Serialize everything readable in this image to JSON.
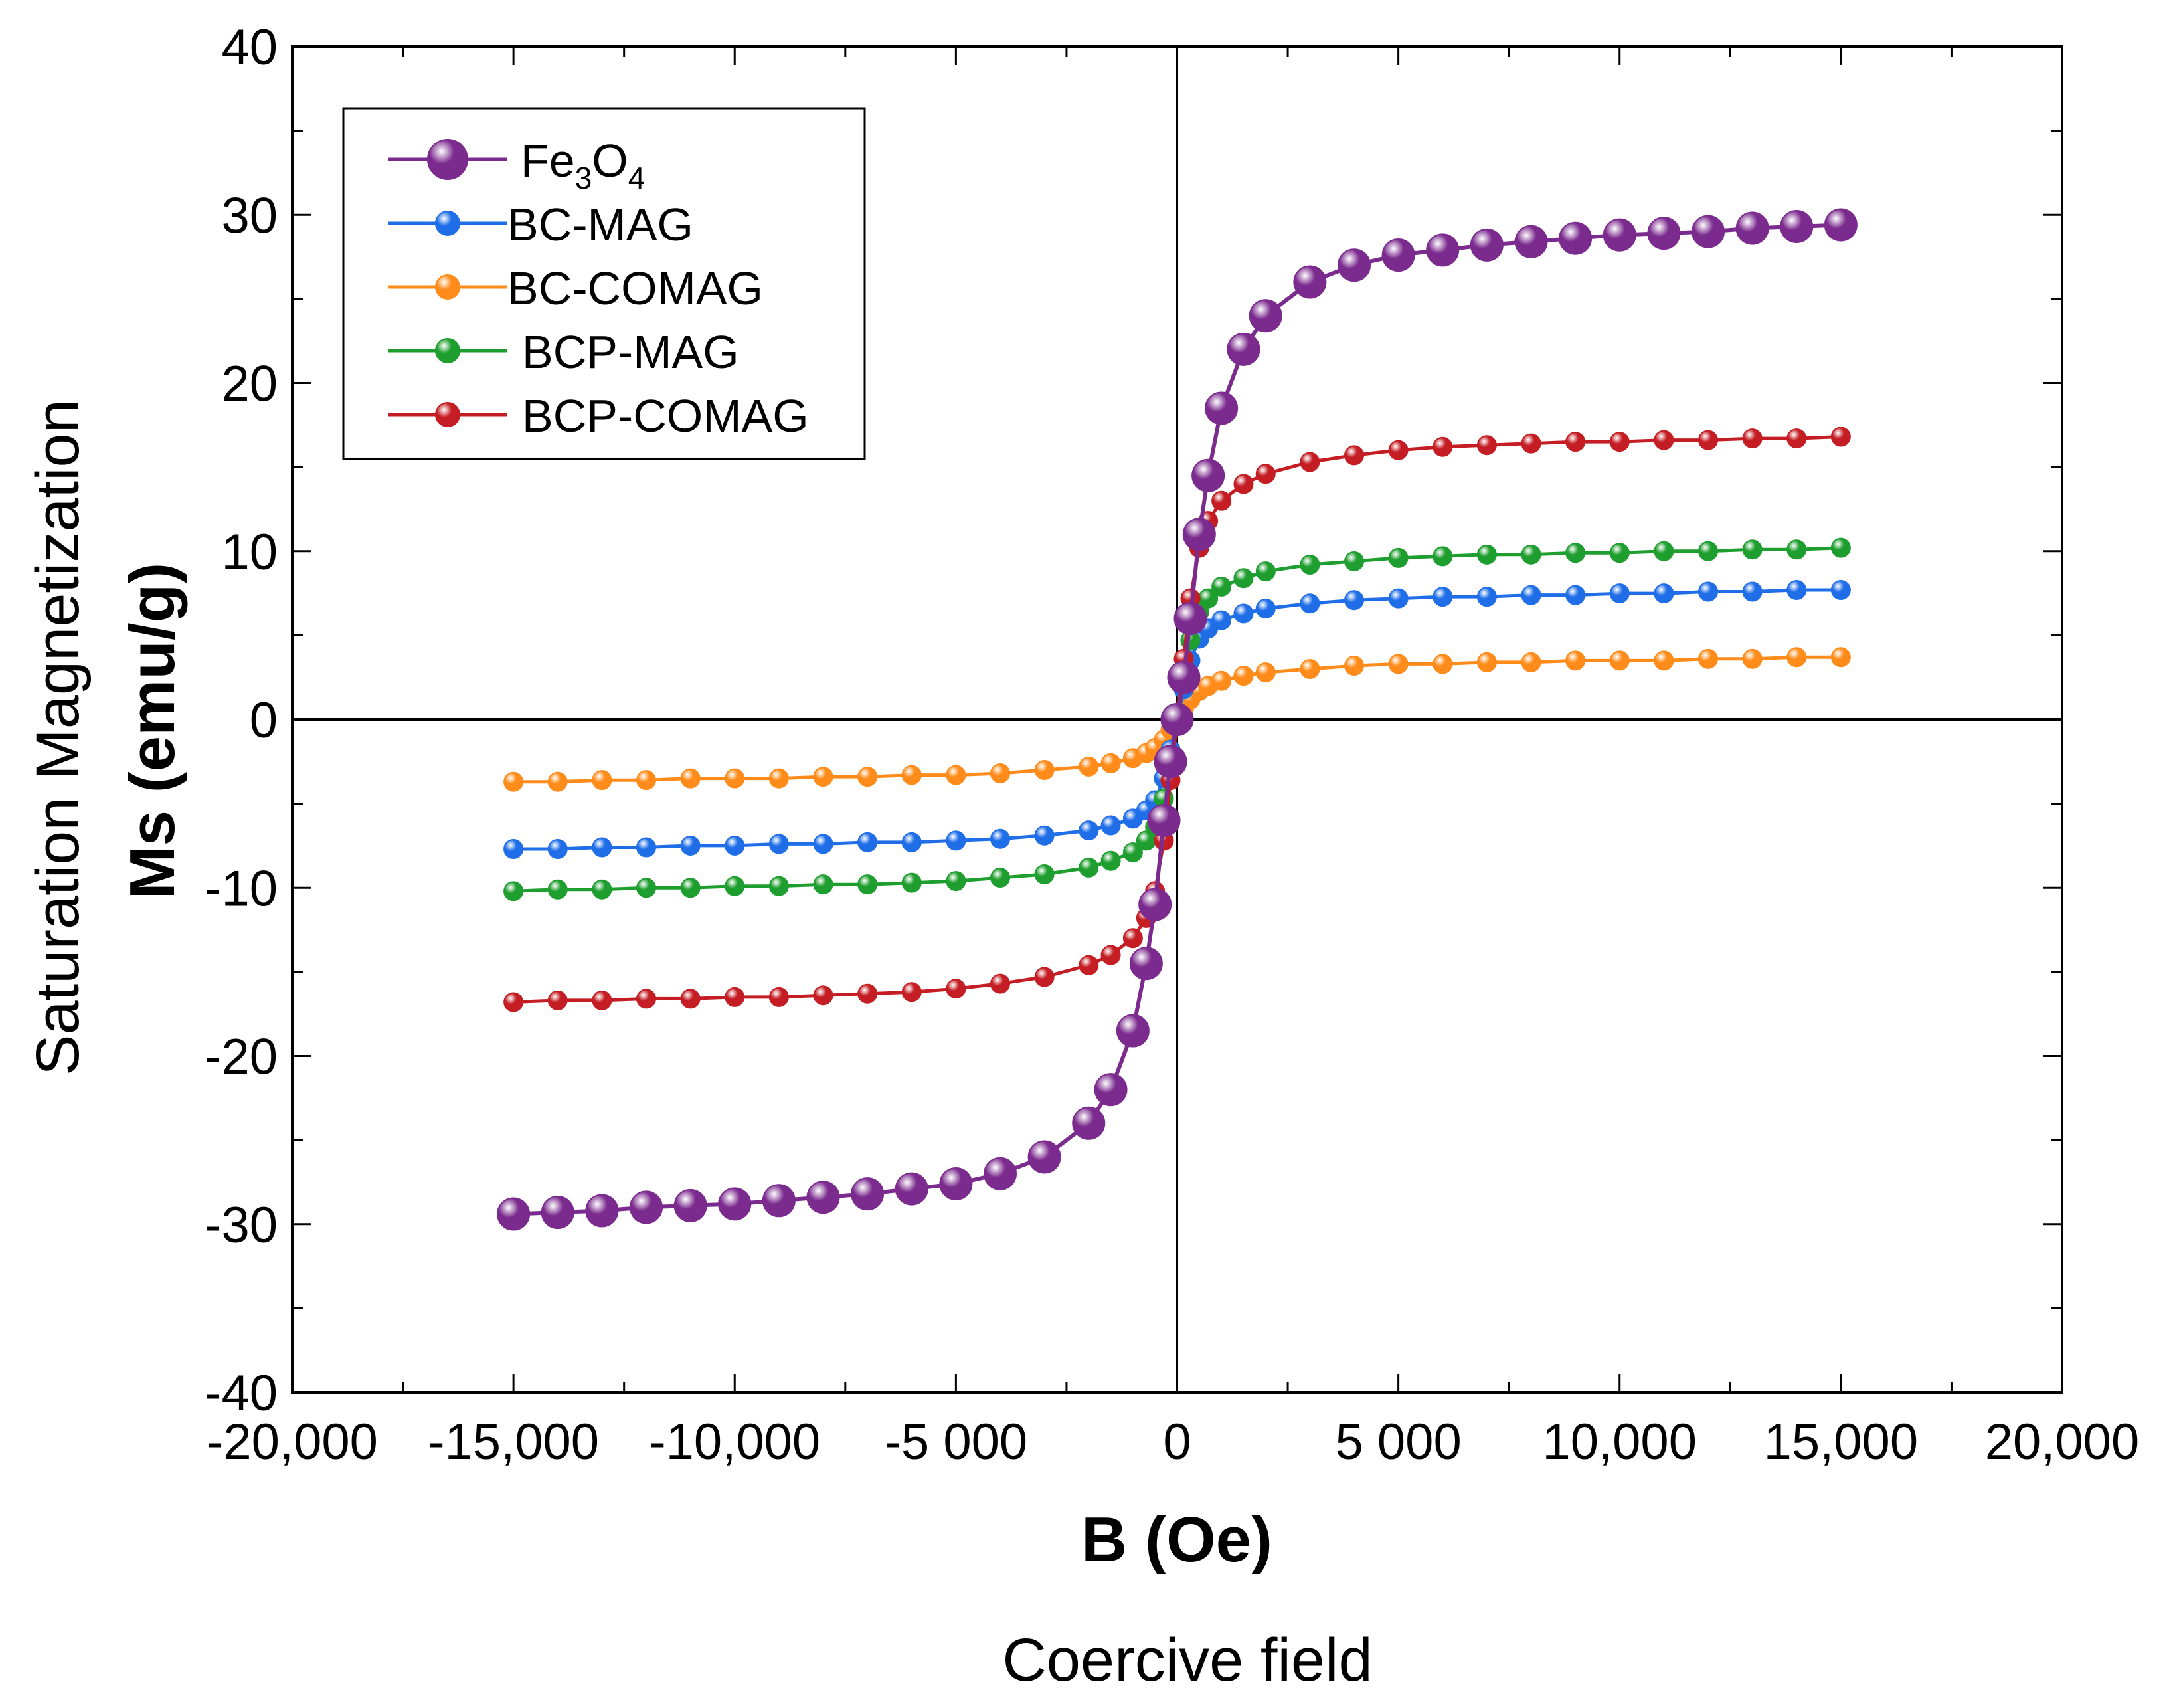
{
  "chart_data": {
    "type": "line",
    "title": "",
    "xlabel": "B (Oe)",
    "xlabel_secondary": "Coercive field",
    "ylabel": "Ms (emu/g)",
    "ylabel_secondary": "Saturation Magnetization",
    "xlim": [
      -20000,
      20000
    ],
    "ylim": [
      -40,
      40
    ],
    "x_ticks": [
      -20000,
      -15000,
      -10000,
      -5000,
      0,
      5000,
      10000,
      15000,
      20000
    ],
    "x_tick_labels": [
      "-20,000",
      "-15,000",
      "-10,000",
      "-5 000",
      "0",
      "5 000",
      "10,000",
      "15,000",
      "20,000"
    ],
    "y_ticks": [
      -40,
      -30,
      -20,
      -10,
      0,
      10,
      20,
      30,
      40
    ],
    "y_tick_labels": [
      "-40",
      "-30",
      "-20",
      "-10",
      "0",
      "10",
      "20",
      "30",
      "40"
    ],
    "legend_position": "top-left",
    "x": [
      -15000,
      -14000,
      -13000,
      -12000,
      -11000,
      -10000,
      -9000,
      -8000,
      -7000,
      -6000,
      -5000,
      -4000,
      -3000,
      -2000,
      -1500,
      -1000,
      -700,
      -500,
      -300,
      -150,
      0,
      150,
      300,
      500,
      700,
      1000,
      1500,
      2000,
      3000,
      4000,
      5000,
      6000,
      7000,
      8000,
      9000,
      10000,
      11000,
      12000,
      13000,
      14000,
      15000
    ],
    "series": [
      {
        "name": "Fe3O4",
        "label_base": "Fe",
        "label_sub1": "3",
        "label_mid": "O",
        "label_sub2": "4",
        "color": "#7b2a8e",
        "marker": "large",
        "values": [
          -29.4,
          -29.3,
          -29.2,
          -29.0,
          -28.9,
          -28.8,
          -28.6,
          -28.4,
          -28.2,
          -27.9,
          -27.6,
          -27.0,
          -26.0,
          -24.0,
          -22.0,
          -18.5,
          -14.5,
          -11.0,
          -6.0,
          -2.5,
          0.0,
          2.5,
          6.0,
          11.0,
          14.5,
          18.5,
          22.0,
          24.0,
          26.0,
          27.0,
          27.6,
          27.9,
          28.2,
          28.4,
          28.6,
          28.8,
          28.9,
          29.0,
          29.2,
          29.3,
          29.4
        ]
      },
      {
        "name": "BC-MAG",
        "color": "#1f6ee8",
        "marker": "small",
        "values": [
          -7.7,
          -7.7,
          -7.6,
          -7.6,
          -7.5,
          -7.5,
          -7.4,
          -7.4,
          -7.3,
          -7.3,
          -7.2,
          -7.1,
          -6.9,
          -6.6,
          -6.3,
          -5.9,
          -5.4,
          -4.8,
          -3.5,
          -1.8,
          0.0,
          1.8,
          3.5,
          4.8,
          5.4,
          5.9,
          6.3,
          6.6,
          6.9,
          7.1,
          7.2,
          7.3,
          7.3,
          7.4,
          7.4,
          7.5,
          7.5,
          7.6,
          7.6,
          7.7,
          7.7
        ]
      },
      {
        "name": "BC-COMAG",
        "color": "#ff8c1a",
        "marker": "small",
        "values": [
          -3.7,
          -3.7,
          -3.6,
          -3.6,
          -3.5,
          -3.5,
          -3.5,
          -3.4,
          -3.4,
          -3.3,
          -3.3,
          -3.2,
          -3.0,
          -2.8,
          -2.6,
          -2.3,
          -2.0,
          -1.7,
          -1.2,
          -0.6,
          0.0,
          0.6,
          1.2,
          1.7,
          2.0,
          2.3,
          2.6,
          2.8,
          3.0,
          3.2,
          3.3,
          3.3,
          3.4,
          3.4,
          3.5,
          3.5,
          3.5,
          3.6,
          3.6,
          3.7,
          3.7
        ]
      },
      {
        "name": "BCP-MAG",
        "color": "#1e9e2e",
        "marker": "small",
        "values": [
          -10.2,
          -10.1,
          -10.1,
          -10.0,
          -10.0,
          -9.9,
          -9.9,
          -9.8,
          -9.8,
          -9.7,
          -9.6,
          -9.4,
          -9.2,
          -8.8,
          -8.4,
          -7.9,
          -7.2,
          -6.4,
          -4.7,
          -2.4,
          0.0,
          2.4,
          4.7,
          6.4,
          7.2,
          7.9,
          8.4,
          8.8,
          9.2,
          9.4,
          9.6,
          9.7,
          9.8,
          9.8,
          9.9,
          9.9,
          10.0,
          10.0,
          10.1,
          10.1,
          10.2
        ]
      },
      {
        "name": "BCP-COMAG",
        "color": "#c41e24",
        "marker": "small",
        "values": [
          -16.8,
          -16.7,
          -16.7,
          -16.6,
          -16.6,
          -16.5,
          -16.5,
          -16.4,
          -16.3,
          -16.2,
          -16.0,
          -15.7,
          -15.3,
          -14.6,
          -14.0,
          -13.0,
          -11.8,
          -10.2,
          -7.2,
          -3.6,
          0.0,
          3.6,
          7.2,
          10.2,
          11.8,
          13.0,
          14.0,
          14.6,
          15.3,
          15.7,
          16.0,
          16.2,
          16.3,
          16.4,
          16.5,
          16.5,
          16.6,
          16.6,
          16.7,
          16.7,
          16.8
        ]
      }
    ]
  }
}
